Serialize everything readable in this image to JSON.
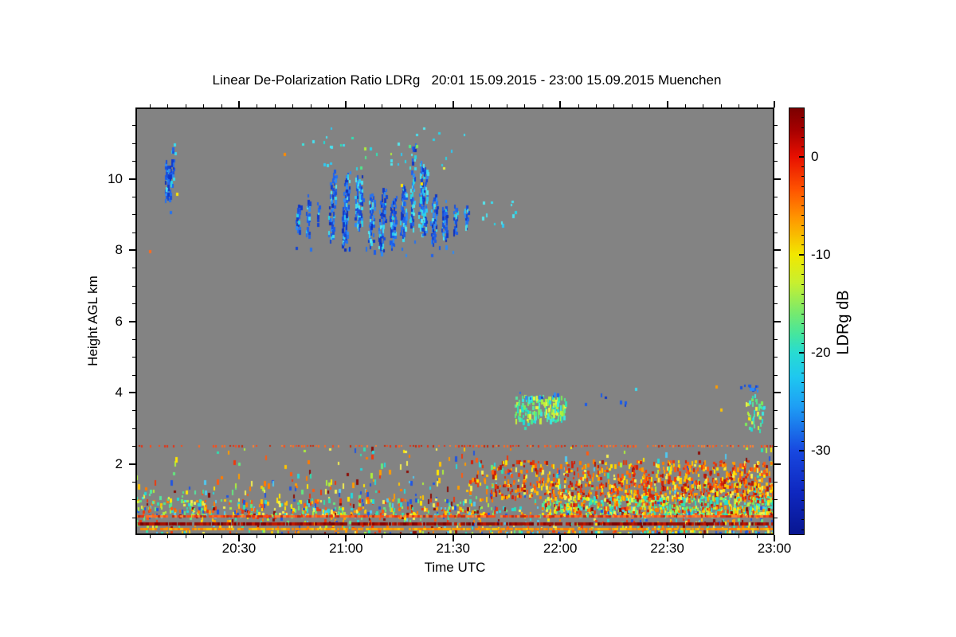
{
  "chart_data": {
    "type": "heatmap",
    "title": "Linear De-Polarization Ratio LDRg   20:01 15.09.2015 - 23:00 15.09.2015 Muenchen",
    "xlabel": "Time UTC",
    "ylabel": "Height AGL km",
    "x_range_minutes": [
      1,
      180
    ],
    "x_major_ticks": [
      {
        "t": 30,
        "label": "20:30"
      },
      {
        "t": 60,
        "label": "21:00"
      },
      {
        "t": 90,
        "label": "21:30"
      },
      {
        "t": 120,
        "label": "22:00"
      },
      {
        "t": 150,
        "label": "22:30"
      },
      {
        "t": 180,
        "label": "23:00"
      }
    ],
    "x_minor_step_min": 5,
    "y_range_km": [
      0,
      12
    ],
    "y_major_ticks": [
      {
        "h": 2,
        "label": "2"
      },
      {
        "h": 4,
        "label": "4"
      },
      {
        "h": 6,
        "label": "6"
      },
      {
        "h": 8,
        "label": "8"
      },
      {
        "h": 10,
        "label": "10"
      }
    ],
    "y_minor_step_km": 0.5,
    "no_data_color": "#838383",
    "grid": false,
    "seed": 7,
    "colorbar": {
      "label": "LDRg dB",
      "vmin": -38.6,
      "vmax": 5.0,
      "major_ticks": [
        {
          "v": 0,
          "label": "0"
        },
        {
          "v": -10,
          "label": "-10"
        },
        {
          "v": -20,
          "label": "-20"
        },
        {
          "v": -30,
          "label": "-30"
        }
      ],
      "minor_step_db": 1,
      "gradient_stops": [
        [
          0,
          "#7a0000"
        ],
        [
          0.05,
          "#a40000"
        ],
        [
          0.115,
          "#e81000"
        ],
        [
          0.19,
          "#ff5200"
        ],
        [
          0.26,
          "#ff9800"
        ],
        [
          0.344,
          "#f2e800"
        ],
        [
          0.41,
          "#c8f030"
        ],
        [
          0.48,
          "#78ea6e"
        ],
        [
          0.53,
          "#46e69e"
        ],
        [
          0.573,
          "#28dcd2"
        ],
        [
          0.63,
          "#1fc8f0"
        ],
        [
          0.7,
          "#1e9ef5"
        ],
        [
          0.803,
          "#1848e0"
        ],
        [
          0.9,
          "#0f28c0"
        ],
        [
          1,
          "#081690"
        ]
      ]
    },
    "palettes": {
      "warm": [
        "#d21f0a",
        "#f0380c",
        "#ff5a10",
        "#ff7b00",
        "#ff9c00",
        "#ffc400",
        "#ffe600",
        "#f5f050",
        "#e03808",
        "#b01808"
      ],
      "mixed": [
        "#f0380c",
        "#ff7b00",
        "#ff9c00",
        "#ffe600",
        "#f5f050",
        "#aef03c",
        "#64e87d",
        "#2fe0b0",
        "#24d8dc",
        "#2255e0",
        "#8b0e06",
        "#ffc400",
        "#ff5a10",
        "#50c8f0"
      ],
      "greencyan": [
        "#aef03c",
        "#7deb5a",
        "#50e88c",
        "#2ee3b4",
        "#22dcd6",
        "#3ce6e0",
        "#c8f03c",
        "#e8f540",
        "#55e8a0"
      ],
      "blue": [
        "#1545d2",
        "#1b5ce8",
        "#2472f0",
        "#2e8af5",
        "#1a50da",
        "#2162ec",
        "#0f38c8"
      ],
      "cyan": [
        "#2ec8f2",
        "#3cdcf0",
        "#55e6ee",
        "#28d4e8",
        "#48e0f0"
      ],
      "redline": [
        "#e63214",
        "#ff4a14",
        "#ff6a20",
        "#c82808",
        "#ff8030"
      ],
      "darkredline": [
        "#8b0000",
        "#a30f00",
        "#7a0000",
        "#c01800",
        "#901008"
      ],
      "orangeline": [
        "#ff8c00",
        "#ffa500",
        "#ff7a00",
        "#ffc400",
        "#ff9400"
      ]
    },
    "features": [
      {
        "kind": "streaks",
        "name": "cirrus-fragment-2010",
        "p_cyan": 0.1,
        "items": [
          [
            10.1,
            9.35,
            10.5,
            1.6,
            0.5,
            0
          ],
          [
            11.1,
            9.8,
            10.95,
            1.1,
            0.4,
            0
          ],
          [
            9.4,
            10.1,
            10.6,
            0.7,
            0.3,
            0
          ]
        ]
      },
      {
        "kind": "dots",
        "name": "cirrus-fragment-specks",
        "items": [
          [
            11.7,
            11.0,
            "#3cdcf0"
          ],
          [
            12.4,
            9.62,
            "#ffe600"
          ],
          [
            10.6,
            9.1,
            "#2472f0"
          ],
          [
            11.9,
            10.75,
            "#3cdcf0"
          ]
        ]
      },
      {
        "kind": "streaks",
        "name": "cirrus-main-cluster",
        "p_cyan": 0.15,
        "items": [
          [
            46.5,
            8.55,
            9.4,
            1.2,
            0.4,
            0
          ],
          [
            49.2,
            8.4,
            9.65,
            1.0,
            0.4,
            0
          ],
          [
            52,
            8.75,
            9.5,
            0.8,
            0.3,
            0
          ],
          [
            56,
            8.3,
            10.35,
            1.7,
            0.45,
            0
          ],
          [
            59.8,
            8.05,
            10.5,
            1.9,
            0.4,
            0
          ],
          [
            63.5,
            8.6,
            10.15,
            2.2,
            0.35,
            1
          ],
          [
            67,
            8.15,
            9.65,
            1.5,
            0.4,
            0
          ],
          [
            70,
            7.95,
            9.85,
            1.6,
            0.45,
            0
          ],
          [
            73,
            8.1,
            9.6,
            1.4,
            0.4,
            0
          ],
          [
            76,
            8.35,
            9.95,
            1.5,
            0.35,
            0
          ],
          [
            78.6,
            8.6,
            11.3,
            1.3,
            0.2,
            1
          ],
          [
            81.5,
            8.45,
            10.65,
            2.0,
            0.3,
            1
          ],
          [
            84.5,
            8.2,
            9.65,
            1.6,
            0.35,
            0
          ],
          [
            87.5,
            8.3,
            9.45,
            1.4,
            0.35,
            0
          ],
          [
            90.5,
            8.5,
            9.35,
            1.2,
            0.3,
            0
          ],
          [
            93.5,
            8.65,
            9.4,
            1.0,
            0.3,
            1
          ]
        ]
      },
      {
        "kind": "scatter",
        "name": "cirrus-top-specks",
        "region": [
          48,
          93,
          10.35,
          11.45
        ],
        "density": 0.018,
        "palette": "cyan",
        "dash": [
          2,
          3,
          3,
          4
        ]
      },
      {
        "kind": "scatter",
        "name": "cirrus-top-specks-green",
        "region": [
          48,
          93,
          10.35,
          11.2
        ],
        "density": 0.01,
        "palette": "greencyan",
        "dash": [
          2,
          3,
          3,
          4
        ]
      },
      {
        "kind": "scatter",
        "name": "cirrus-trailing-specks",
        "region": [
          94,
          108,
          8.65,
          9.45
        ],
        "density": 0.05,
        "palette": "cyan",
        "dash": [
          2,
          3,
          3,
          5
        ]
      },
      {
        "kind": "scatter",
        "name": "cirrus-under-specks",
        "region": [
          46,
          95,
          7.9,
          8.35
        ],
        "density": 0.03,
        "palette": "blue",
        "dash": [
          2,
          3,
          4,
          6
        ]
      },
      {
        "kind": "scatter",
        "name": "midlevel-cloud-patch",
        "region": [
          107.5,
          121,
          3.28,
          3.92
        ],
        "density": 0.58,
        "palette": "greencyan",
        "dash": [
          2,
          3,
          4,
          7
        ]
      },
      {
        "kind": "scatter",
        "name": "midlevel-top-blue-dots",
        "region": [
          108,
          120.5,
          3.9,
          4.1
        ],
        "density": 0.13,
        "palette": "blue",
        "dash": [
          2,
          3,
          3,
          5
        ]
      },
      {
        "kind": "scatter",
        "name": "midlevel-below-specks",
        "region": [
          109,
          119,
          3.05,
          3.26
        ],
        "density": 0.05,
        "palette": "greencyan",
        "dash": [
          2,
          3,
          3,
          4
        ]
      },
      {
        "kind": "scatter",
        "name": "blue-specks-2210",
        "region": [
          127,
          139,
          3.7,
          4.0
        ],
        "density": 0.07,
        "palette": "blue",
        "dash": [
          2,
          3,
          3,
          5
        ]
      },
      {
        "kind": "dots",
        "name": "isolated-midlevel-dots",
        "items": [
          [
            141,
            4.13,
            "#3cdcf0"
          ],
          [
            163.5,
            4.2,
            "#ff9c00"
          ],
          [
            164.8,
            3.55,
            "#ffc400"
          ]
        ]
      },
      {
        "kind": "scatter",
        "name": "patch-2255-blue-top",
        "region": [
          170.5,
          175,
          4.12,
          4.3
        ],
        "density": 0.22,
        "palette": "blue",
        "dash": [
          2,
          3,
          3,
          4
        ]
      },
      {
        "kind": "scatter",
        "name": "patch-2255-body",
        "region": [
          172,
          176.5,
          2.95,
          4.0
        ],
        "density": 0.4,
        "palette": "greencyan",
        "dash": [
          2,
          3,
          4,
          6
        ]
      },
      {
        "kind": "dots",
        "name": "patch-2255-accents",
        "items": [
          [
            172.6,
            3.3,
            "#ffe600"
          ],
          [
            176.8,
            3.62,
            "#3cdcf0"
          ]
        ]
      },
      {
        "kind": "dotted",
        "name": "dotted-line-2500m",
        "h": 2.52,
        "step": 0.8,
        "coverage": 0.62,
        "grad": [
          0.85,
          1.25
        ],
        "palette": "redline",
        "dash": [
          2,
          2,
          2,
          3
        ]
      },
      {
        "kind": "scatter",
        "name": "pbl-upper-sparse",
        "region": [
          1,
          180,
          1.55,
          2.45
        ],
        "density": 0.035,
        "grad": [
          0.55,
          1.45
        ],
        "palette": "mixed",
        "dash": [
          2,
          3,
          3,
          7
        ]
      },
      {
        "kind": "scatter",
        "name": "pbl-mid-sparse",
        "region": [
          1,
          180,
          1.0,
          1.55
        ],
        "density": 0.1,
        "grad": [
          0.7,
          1.3
        ],
        "palette": "mixed",
        "dash": [
          2,
          3,
          3,
          7
        ]
      },
      {
        "kind": "scatter",
        "name": "pbl-left-lower",
        "region": [
          1,
          100,
          0.55,
          1.0
        ],
        "density": 0.22,
        "palette": "mixed",
        "dash": [
          2,
          3,
          3,
          6
        ]
      },
      {
        "kind": "scatter",
        "name": "pbl-right-warm-upper",
        "region": [
          95,
          180,
          1.45,
          2.12
        ],
        "density": 0.42,
        "grad": [
          0.45,
          1.15
        ],
        "palette": "warm",
        "dash": [
          2,
          3,
          3,
          6
        ]
      },
      {
        "kind": "scatter",
        "name": "pbl-right-warm-mid",
        "region": [
          100,
          180,
          1.12,
          1.45
        ],
        "density": 0.48,
        "grad": [
          0.7,
          1.1
        ],
        "palette": "warm",
        "dash": [
          2,
          3,
          3,
          6
        ]
      },
      {
        "kind": "scatter",
        "name": "pbl-green-band",
        "region": [
          115,
          180,
          0.62,
          1.15
        ],
        "density": 0.55,
        "grad": [
          0.75,
          1.15
        ],
        "palette": "greencyan",
        "dash": [
          2,
          3,
          3,
          6
        ]
      },
      {
        "kind": "scatter",
        "name": "pbl-green-band-warm-mix",
        "region": [
          115,
          180,
          0.62,
          1.2
        ],
        "density": 0.25,
        "palette": "warm",
        "dash": [
          2,
          3,
          3,
          5
        ]
      },
      {
        "kind": "scatter",
        "name": "pbl-left-green-hint",
        "region": [
          1,
          20,
          0.7,
          1.25
        ],
        "density": 0.14,
        "palette": "greencyan",
        "dash": [
          2,
          3,
          3,
          5
        ]
      },
      {
        "kind": "scatter",
        "name": "pbl-lower-fill",
        "region": [
          1,
          180,
          0.6,
          0.78
        ],
        "density": 0.3,
        "grad": [
          0.6,
          1.3
        ],
        "palette": "mixed",
        "dash": [
          2,
          3,
          3,
          5
        ]
      },
      {
        "kind": "scatter",
        "name": "between-clutter-lines",
        "region": [
          1,
          180,
          0.26,
          0.52
        ],
        "density": 0.22,
        "grad": [
          0.5,
          1.5
        ],
        "palette": "mixed",
        "dash": [
          2,
          3,
          3,
          4
        ]
      },
      {
        "kind": "hline",
        "name": "clutter-line-550m",
        "h": 0.565,
        "px": 3,
        "step": 0.8,
        "coverage": 0.93,
        "palette": "redline"
      },
      {
        "kind": "hline",
        "name": "clutter-line-350m",
        "h": 0.36,
        "px": 4,
        "step": 0.8,
        "coverage": 0.9,
        "palette": "darkredline"
      },
      {
        "kind": "hline",
        "name": "clutter-line-200m",
        "h": 0.205,
        "px": 3,
        "step": 0.8,
        "coverage": 0.92,
        "palette": "orangeline"
      },
      {
        "kind": "scatter",
        "name": "bottom-row-speckle",
        "region": [
          1,
          180,
          0.02,
          0.16
        ],
        "density": 0.4,
        "grad": [
          0.4,
          1.6
        ],
        "palette": "mixed",
        "dash": [
          2,
          3,
          3,
          4
        ]
      },
      {
        "kind": "dots",
        "name": "isolated-gray-specks",
        "items": [
          [
            4.7,
            8.0,
            "#ff6a1e"
          ],
          [
            42.6,
            10.72,
            "#ff8c00"
          ],
          [
            75.3,
            9.85,
            "#ffe600"
          ],
          [
            80.8,
            9.9,
            "#ffe600"
          ]
        ]
      }
    ]
  }
}
